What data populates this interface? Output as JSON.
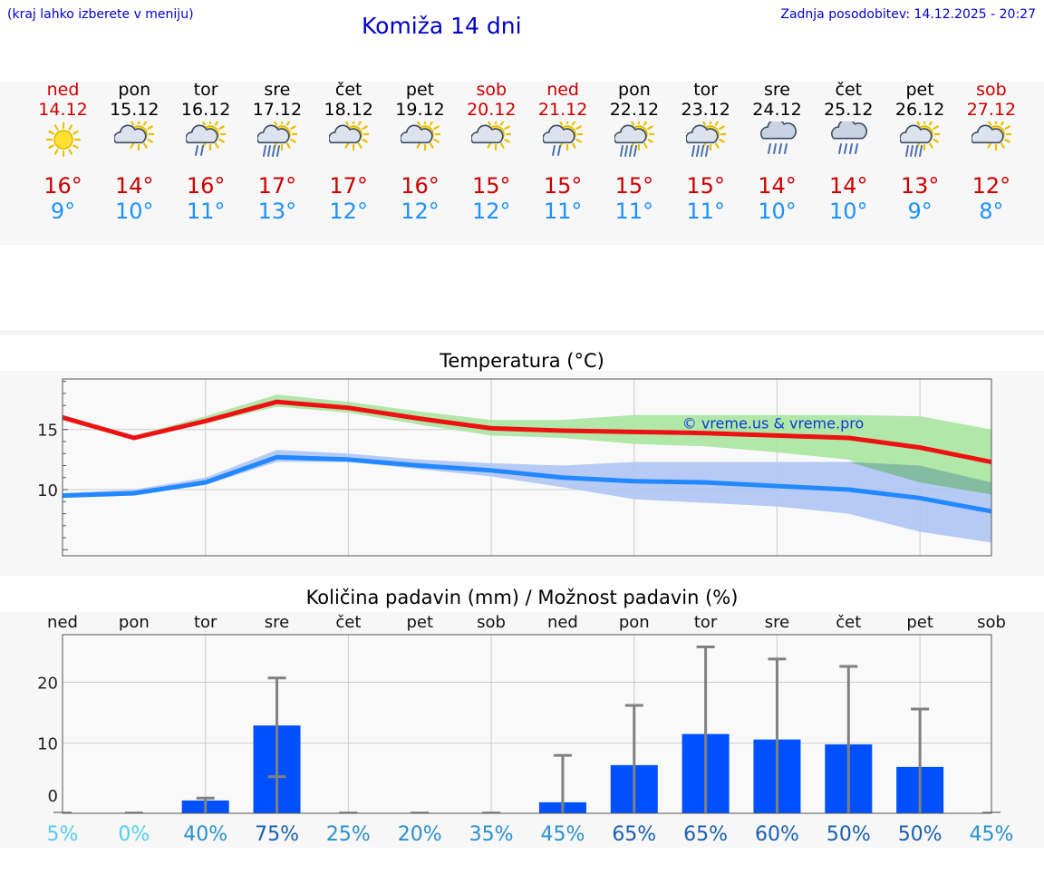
{
  "header": {
    "left_note": "(kraj lahko izberete v meniju)",
    "title": "Komiža 14 dni",
    "updated": "Zadnja posodobitev: 14.12.2025 - 20:27"
  },
  "days": [
    {
      "name": "ned",
      "date": "14.12",
      "icon": "sun-icon",
      "tmax": "16°",
      "tmin": "9°",
      "weekend": true
    },
    {
      "name": "pon",
      "date": "15.12",
      "icon": "sun-cloud-icon",
      "tmax": "14°",
      "tmin": "10°",
      "weekend": false
    },
    {
      "name": "tor",
      "date": "16.12",
      "icon": "sun-cloud-rain-icon",
      "tmax": "16°",
      "tmin": "11°",
      "weekend": false
    },
    {
      "name": "sre",
      "date": "17.12",
      "icon": "sun-cloud-heavy-rain-icon",
      "tmax": "17°",
      "tmin": "13°",
      "weekend": false
    },
    {
      "name": "čet",
      "date": "18.12",
      "icon": "sun-cloud-icon",
      "tmax": "17°",
      "tmin": "12°",
      "weekend": false
    },
    {
      "name": "pet",
      "date": "19.12",
      "icon": "sun-cloud-icon",
      "tmax": "16°",
      "tmin": "12°",
      "weekend": false
    },
    {
      "name": "sob",
      "date": "20.12",
      "icon": "sun-cloud-icon",
      "tmax": "15°",
      "tmin": "12°",
      "weekend": true
    },
    {
      "name": "ned",
      "date": "21.12",
      "icon": "sun-cloud-rain-icon",
      "tmax": "15°",
      "tmin": "11°",
      "weekend": true
    },
    {
      "name": "pon",
      "date": "22.12",
      "icon": "sun-cloud-heavy-rain-icon",
      "tmax": "15°",
      "tmin": "11°",
      "weekend": false
    },
    {
      "name": "tor",
      "date": "23.12",
      "icon": "sun-cloud-heavy-rain-icon",
      "tmax": "15°",
      "tmin": "11°",
      "weekend": false
    },
    {
      "name": "sre",
      "date": "24.12",
      "icon": "cloud-heavy-rain-icon",
      "tmax": "14°",
      "tmin": "10°",
      "weekend": false
    },
    {
      "name": "čet",
      "date": "25.12",
      "icon": "cloud-heavy-rain-icon",
      "tmax": "14°",
      "tmin": "10°",
      "weekend": false
    },
    {
      "name": "pet",
      "date": "26.12",
      "icon": "sun-cloud-heavy-rain-icon",
      "tmax": "13°",
      "tmin": "9°",
      "weekend": false
    },
    {
      "name": "sob",
      "date": "27.12",
      "icon": "sun-cloud-icon",
      "tmax": "12°",
      "tmin": "8°",
      "weekend": true
    }
  ],
  "colors": {
    "max_line": "#ee1111",
    "min_line": "#2288ff",
    "max_band": "#a8e4a0",
    "min_band": "#aec4f4",
    "overlap_band": "#7fb8a0",
    "bar": "#0050ff",
    "errbar": "#808080",
    "weekend": "#cc0000"
  },
  "chart_data": [
    {
      "type": "line",
      "title": "Temperatura (°C)",
      "watermark": "© vreme.us & vreme.pro",
      "yticks": [
        10,
        15
      ],
      "ylim": [
        4.5,
        19.2
      ],
      "x": [
        0,
        1,
        2,
        3,
        4,
        5,
        6,
        7,
        8,
        9,
        10,
        11,
        12,
        13
      ],
      "series": [
        {
          "name": "max",
          "values": [
            16.0,
            14.3,
            15.7,
            17.3,
            16.8,
            15.9,
            15.1,
            14.9,
            14.8,
            14.7,
            14.5,
            14.3,
            13.5,
            12.3
          ]
        },
        {
          "name": "max_low",
          "values": [
            16.0,
            14.2,
            15.5,
            16.9,
            16.4,
            15.4,
            14.5,
            14.3,
            13.8,
            13.6,
            13.1,
            12.5,
            10.6,
            9.6
          ]
        },
        {
          "name": "max_high",
          "values": [
            16.1,
            14.5,
            16.1,
            17.9,
            17.3,
            16.5,
            15.8,
            15.8,
            16.2,
            16.2,
            16.2,
            16.2,
            16.1,
            15.0
          ]
        },
        {
          "name": "min",
          "values": [
            9.5,
            9.7,
            10.6,
            12.7,
            12.5,
            12.0,
            11.6,
            11.0,
            10.7,
            10.6,
            10.3,
            10.0,
            9.3,
            8.2
          ]
        },
        {
          "name": "min_low",
          "values": [
            9.4,
            9.5,
            10.4,
            12.3,
            12.3,
            11.7,
            11.1,
            10.2,
            9.2,
            8.9,
            8.6,
            8.0,
            6.5,
            5.6
          ]
        },
        {
          "name": "min_high",
          "values": [
            9.7,
            10.0,
            11.0,
            13.3,
            13.0,
            12.5,
            12.2,
            12.0,
            12.3,
            12.3,
            12.3,
            12.3,
            12.0,
            10.6
          ]
        }
      ]
    },
    {
      "type": "bar",
      "title": "Količina padavin (mm) / Možnost padavin (%)",
      "categories": [
        "ned",
        "pon",
        "tor",
        "sre",
        "čet",
        "pet",
        "sob",
        "ned",
        "pon",
        "tor",
        "sre",
        "čet",
        "pet",
        "sob"
      ],
      "yticks": [
        0,
        10,
        20
      ],
      "ylim": [
        -1.5,
        27.8
      ],
      "values": [
        0,
        0,
        0.6,
        12.9,
        0,
        0,
        0,
        0.3,
        6.4,
        11.5,
        10.6,
        9.8,
        6.1,
        0
      ],
      "err_low": [
        0,
        0,
        0,
        4.5,
        0,
        0,
        0,
        0,
        0,
        0,
        0,
        0,
        0,
        0
      ],
      "err_high": [
        0,
        0,
        1.0,
        20.7,
        0,
        0,
        0,
        8.0,
        16.2,
        25.8,
        23.8,
        22.6,
        15.6,
        0
      ],
      "probabilities": [
        "5%",
        "0%",
        "40%",
        "75%",
        "25%",
        "20%",
        "35%",
        "45%",
        "65%",
        "65%",
        "60%",
        "50%",
        "50%",
        "45%"
      ],
      "prob_colors": [
        "#55ccee",
        "#55ccee",
        "#2a8fd0",
        "#1a5fb0",
        "#2a8fd0",
        "#2a8fd0",
        "#2a8fd0",
        "#2a8fd0",
        "#1a5fb0",
        "#1a5fb0",
        "#1a5fb0",
        "#1a5fb0",
        "#1a5fb0",
        "#2a8fd0"
      ]
    }
  ]
}
